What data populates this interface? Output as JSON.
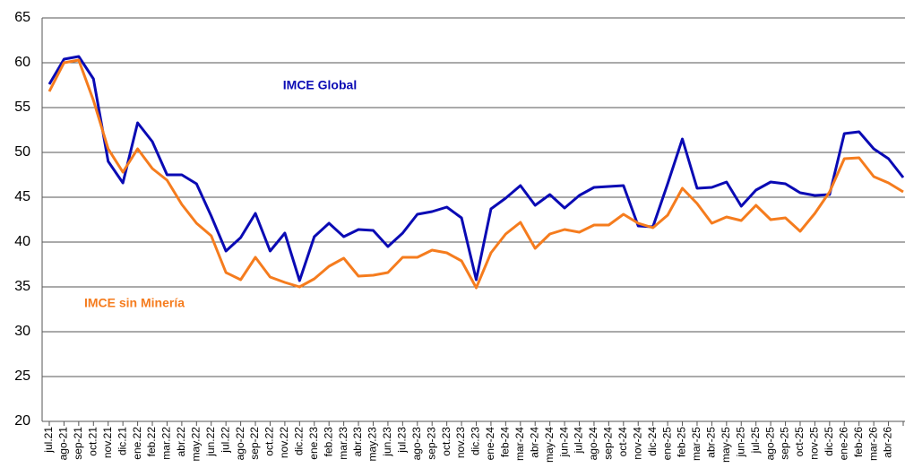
{
  "chart_data": {
    "type": "line",
    "categories": [
      "jul.21",
      "ago-21",
      "sep-21",
      "oct.21",
      "nov.21",
      "dic.21",
      "ene.22",
      "feb.22",
      "mar.22",
      "abr.22",
      "may.22",
      "jun.22",
      "jul.22",
      "ago-22",
      "sep-22",
      "oct.22",
      "nov.22",
      "dic.22",
      "ene.23",
      "feb.23",
      "mar.23",
      "abr.23",
      "may.23",
      "jun.23",
      "jul.23",
      "ago-23",
      "sep-23",
      "oct.23",
      "nov.23",
      "dic.23",
      "ene-24",
      "feb-24",
      "mar-24",
      "abr-24",
      "may-24",
      "jun-24",
      "jul-24",
      "ago-24",
      "sep-24",
      "oct-24",
      "nov-24",
      "dic-24",
      "ene-25",
      "feb-25",
      "mar-25",
      "abr-25",
      "may-25",
      "jun-25",
      "jul-25",
      "ago-25",
      "sep-25",
      "oct-25",
      "nov-25",
      "dic-25",
      "ene-26",
      "feb-26",
      "mar-26",
      "abr-26",
      null
    ],
    "series": [
      {
        "name": "IMCE Global",
        "color": "#0a0ab4",
        "values": [
          57.6,
          60.4,
          60.7,
          58.2,
          49.0,
          46.6,
          53.3,
          51.2,
          47.5,
          47.5,
          46.5,
          42.9,
          39.0,
          40.5,
          43.2,
          39.0,
          41.0,
          35.7,
          40.6,
          42.1,
          40.6,
          41.4,
          41.3,
          39.5,
          41.0,
          43.1,
          43.4,
          43.9,
          42.7,
          35.8,
          43.7,
          44.9,
          46.3,
          44.1,
          45.3,
          43.8,
          45.2,
          46.1,
          46.2,
          46.3,
          41.8,
          41.7,
          46.5,
          51.5,
          46.0,
          46.1,
          46.7,
          44.0,
          45.8,
          46.7,
          46.5,
          45.5,
          45.2,
          45.3,
          52.1,
          52.3,
          50.4,
          49.3,
          47.2
        ]
      },
      {
        "name": "IMCE sin Minería",
        "color": "#f57c1e",
        "values": [
          56.8,
          60.0,
          60.3,
          55.8,
          50.4,
          47.8,
          50.4,
          48.2,
          46.9,
          44.2,
          42.1,
          40.7,
          36.6,
          35.8,
          38.3,
          36.1,
          35.5,
          35.0,
          35.9,
          37.3,
          38.2,
          36.2,
          36.3,
          36.6,
          38.3,
          38.3,
          39.1,
          38.8,
          37.9,
          34.9,
          38.8,
          40.9,
          42.2,
          39.3,
          40.9,
          41.4,
          41.1,
          41.9,
          41.9,
          43.1,
          42.1,
          41.6,
          43.0,
          46.0,
          44.3,
          42.1,
          42.8,
          42.4,
          44.1,
          42.5,
          42.7,
          41.2,
          43.2,
          45.6,
          49.3,
          49.4,
          47.3,
          46.6,
          45.6
        ]
      }
    ],
    "ylim": [
      20,
      65
    ],
    "yticks": [
      20,
      25,
      30,
      35,
      40,
      45,
      50,
      55,
      60,
      65
    ],
    "grid": true
  }
}
